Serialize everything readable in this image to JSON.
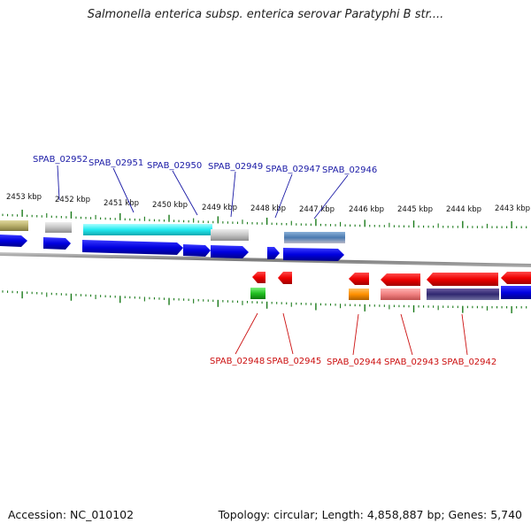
{
  "title": "Salmonella enterica subsp. enterica serovar Paratyphi B str....",
  "accession": "Accession: NC_010102",
  "topology": "Topology: circular; Length: 4,858,887 bp; Genes: 5,740",
  "kbp_labels": [
    "2453 kbp",
    "2452 kbp",
    "2451 kbp",
    "2450 kbp",
    "2449 kbp",
    "2448 kbp",
    "2447 kbp",
    "2446 kbp",
    "2445 kbp",
    "2444 kbp",
    "2443 kbp"
  ],
  "top_labels": [
    "SPAB_02952",
    "SPAB_02951",
    "SPAB_02950",
    "SPAB_02949",
    "SPAB_02947",
    "SPAB_02946"
  ],
  "bottom_labels": [
    "SPAB_02948",
    "SPAB_02945",
    "SPAB_02944",
    "SPAB_02943",
    "SPAB_02942"
  ],
  "colors": {
    "forward_gene": "#0a0ae6",
    "reverse_gene": "#e60a0a",
    "top_label": "#1a1aa6",
    "bottom_label": "#cc1010",
    "tick": "#1a7a1a",
    "backbone": "#8a8a8a"
  }
}
